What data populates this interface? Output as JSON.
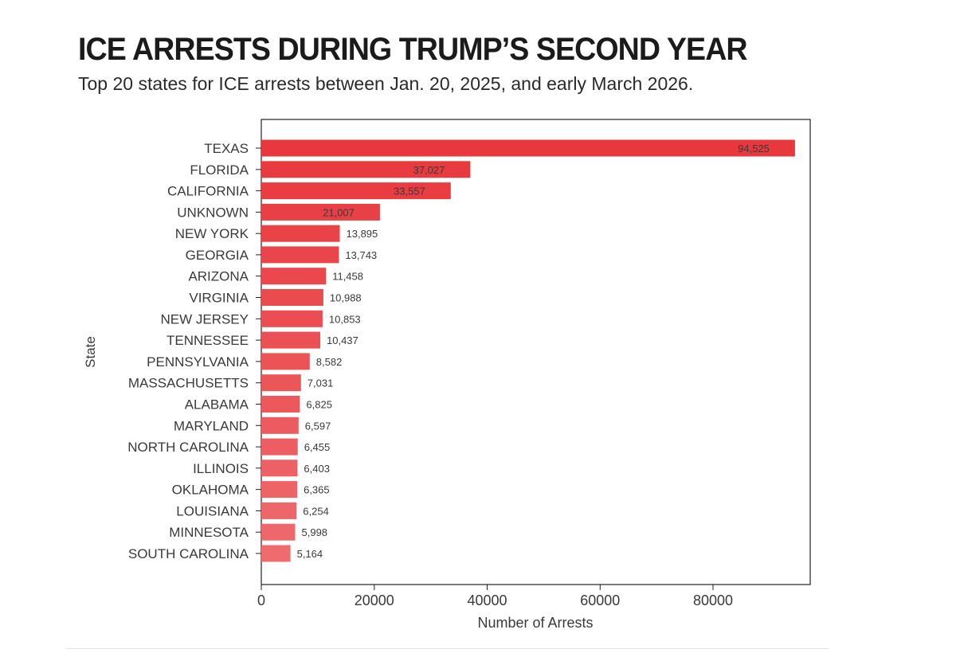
{
  "header": {
    "title": "ICE ARRESTS DURING TRUMP’S SECOND YEAR",
    "subtitle": "Top 20 states for ICE arrests between Jan. 20, 2025, and early March 2026."
  },
  "colors": {
    "bar_top": "#e8383d",
    "bar_bottom": "#ee6b6e",
    "axis": "#222222",
    "text": "#3a3a3a"
  },
  "chart_data": {
    "type": "bar",
    "orientation": "horizontal",
    "title": "ICE ARRESTS DURING TRUMP’S SECOND YEAR",
    "subtitle": "Top 20 states for ICE arrests between Jan. 20, 2025, and early March 2026.",
    "xlabel": "Number of Arrests",
    "ylabel": "State",
    "xlim": [
      0,
      100000
    ],
    "xticks": [
      0,
      20000,
      40000,
      60000,
      80000
    ],
    "grid": false,
    "categories": [
      "TEXAS",
      "FLORIDA",
      "CALIFORNIA",
      "UNKNOWN",
      "NEW YORK",
      "GEORGIA",
      "ARIZONA",
      "VIRGINIA",
      "NEW JERSEY",
      "TENNESSEE",
      "PENNSYLVANIA",
      "MASSACHUSETTS",
      "ALABAMA",
      "MARYLAND",
      "NORTH CAROLINA",
      "ILLINOIS",
      "OKLAHOMA",
      "LOUISIANA",
      "MINNESOTA",
      "SOUTH CAROLINA"
    ],
    "values": [
      94525,
      37027,
      33557,
      21007,
      13895,
      13743,
      11458,
      10988,
      10853,
      10437,
      8582,
      7031,
      6825,
      6597,
      6455,
      6403,
      6365,
      6254,
      5998,
      5164
    ],
    "value_labels": [
      "94,525",
      "37,027",
      "33,557",
      "21,007",
      "13,895",
      "13,743",
      "11,458",
      "10,988",
      "10,853",
      "10,437",
      "8,582",
      "7,031",
      "6,825",
      "6,597",
      "6,455",
      "6,403",
      "6,365",
      "6,254",
      "5,998",
      "5,164"
    ]
  }
}
